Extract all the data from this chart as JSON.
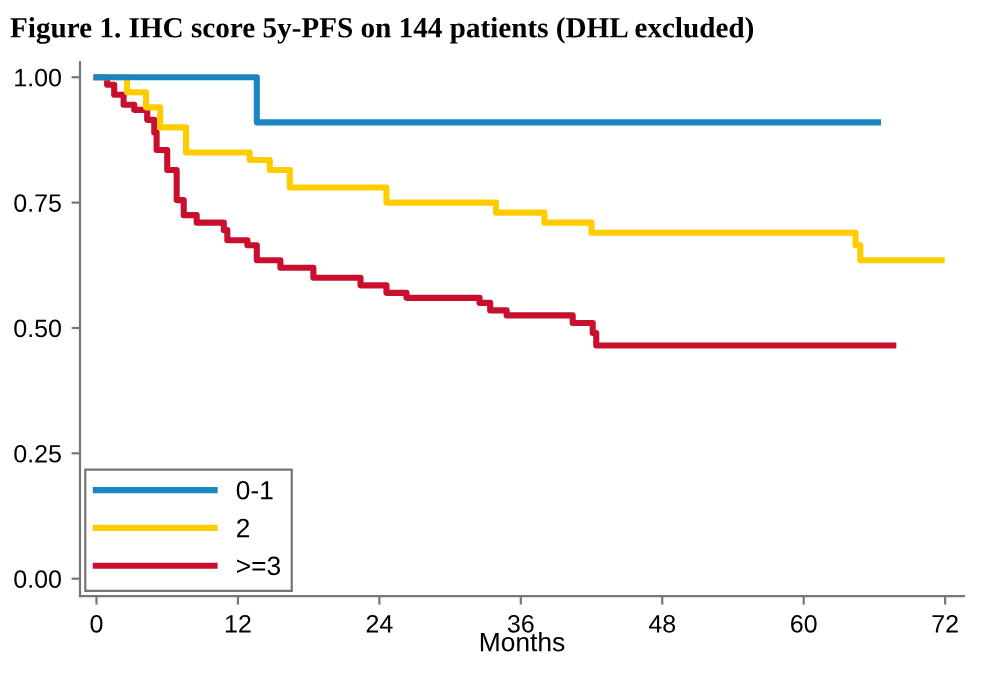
{
  "chart_data": {
    "type": "step",
    "title": "Figure 1. IHC score 5y-PFS on 144 patients (DHL excluded)",
    "xlabel": "Months",
    "xlim": [
      -1.4,
      73.6
    ],
    "xticks": [
      0,
      12,
      24,
      36,
      48,
      60,
      72
    ],
    "ylim": [
      -0.035,
      1.03
    ],
    "yticks": [
      {
        "value": 0,
        "label": "0.00"
      },
      {
        "value": 0.25,
        "label": "0.25"
      },
      {
        "value": 0.5,
        "label": "0.50"
      },
      {
        "value": 0.75,
        "label": "0.75"
      },
      {
        "value": 1,
        "label": "1.00"
      }
    ],
    "grid": false,
    "legend": "bottom left",
    "line_style": "solid",
    "marker": "none",
    "series": [
      {
        "name": "0-1",
        "color": "#1a85c0",
        "x": [
          0,
          13.6,
          66.3
        ],
        "values": [
          1,
          0.91,
          0.91
        ]
      },
      {
        "name": "2",
        "color": "#ffcc00",
        "x": [
          0,
          2.6,
          4.2,
          5.4,
          7.6,
          13,
          14.7,
          16.4,
          24.6,
          33.9,
          38,
          42,
          64.4,
          64.8,
          71.7
        ],
        "values": [
          1,
          0.97,
          0.94,
          0.9,
          0.85,
          0.835,
          0.815,
          0.78,
          0.75,
          0.73,
          0.71,
          0.69,
          0.665,
          0.635,
          0.635
        ]
      },
      {
        "name": ">=3",
        "color": "#c8102e",
        "x": [
          0,
          0.9,
          1.5,
          2.3,
          3.2,
          4.3,
          4.9,
          5.1,
          6.0,
          6.8,
          7.4,
          8.5,
          10.8,
          11.1,
          12.8,
          13.6,
          15.6,
          18.4,
          22.4,
          24.6,
          26.3,
          32.5,
          33.4,
          34.8,
          40.4,
          42.1,
          42.4,
          67.6
        ],
        "values": [
          1,
          0.985,
          0.965,
          0.945,
          0.935,
          0.915,
          0.89,
          0.855,
          0.815,
          0.755,
          0.725,
          0.71,
          0.695,
          0.675,
          0.665,
          0.635,
          0.62,
          0.6,
          0.585,
          0.57,
          0.56,
          0.55,
          0.535,
          0.525,
          0.51,
          0.49,
          0.465,
          0.465
        ]
      }
    ]
  }
}
